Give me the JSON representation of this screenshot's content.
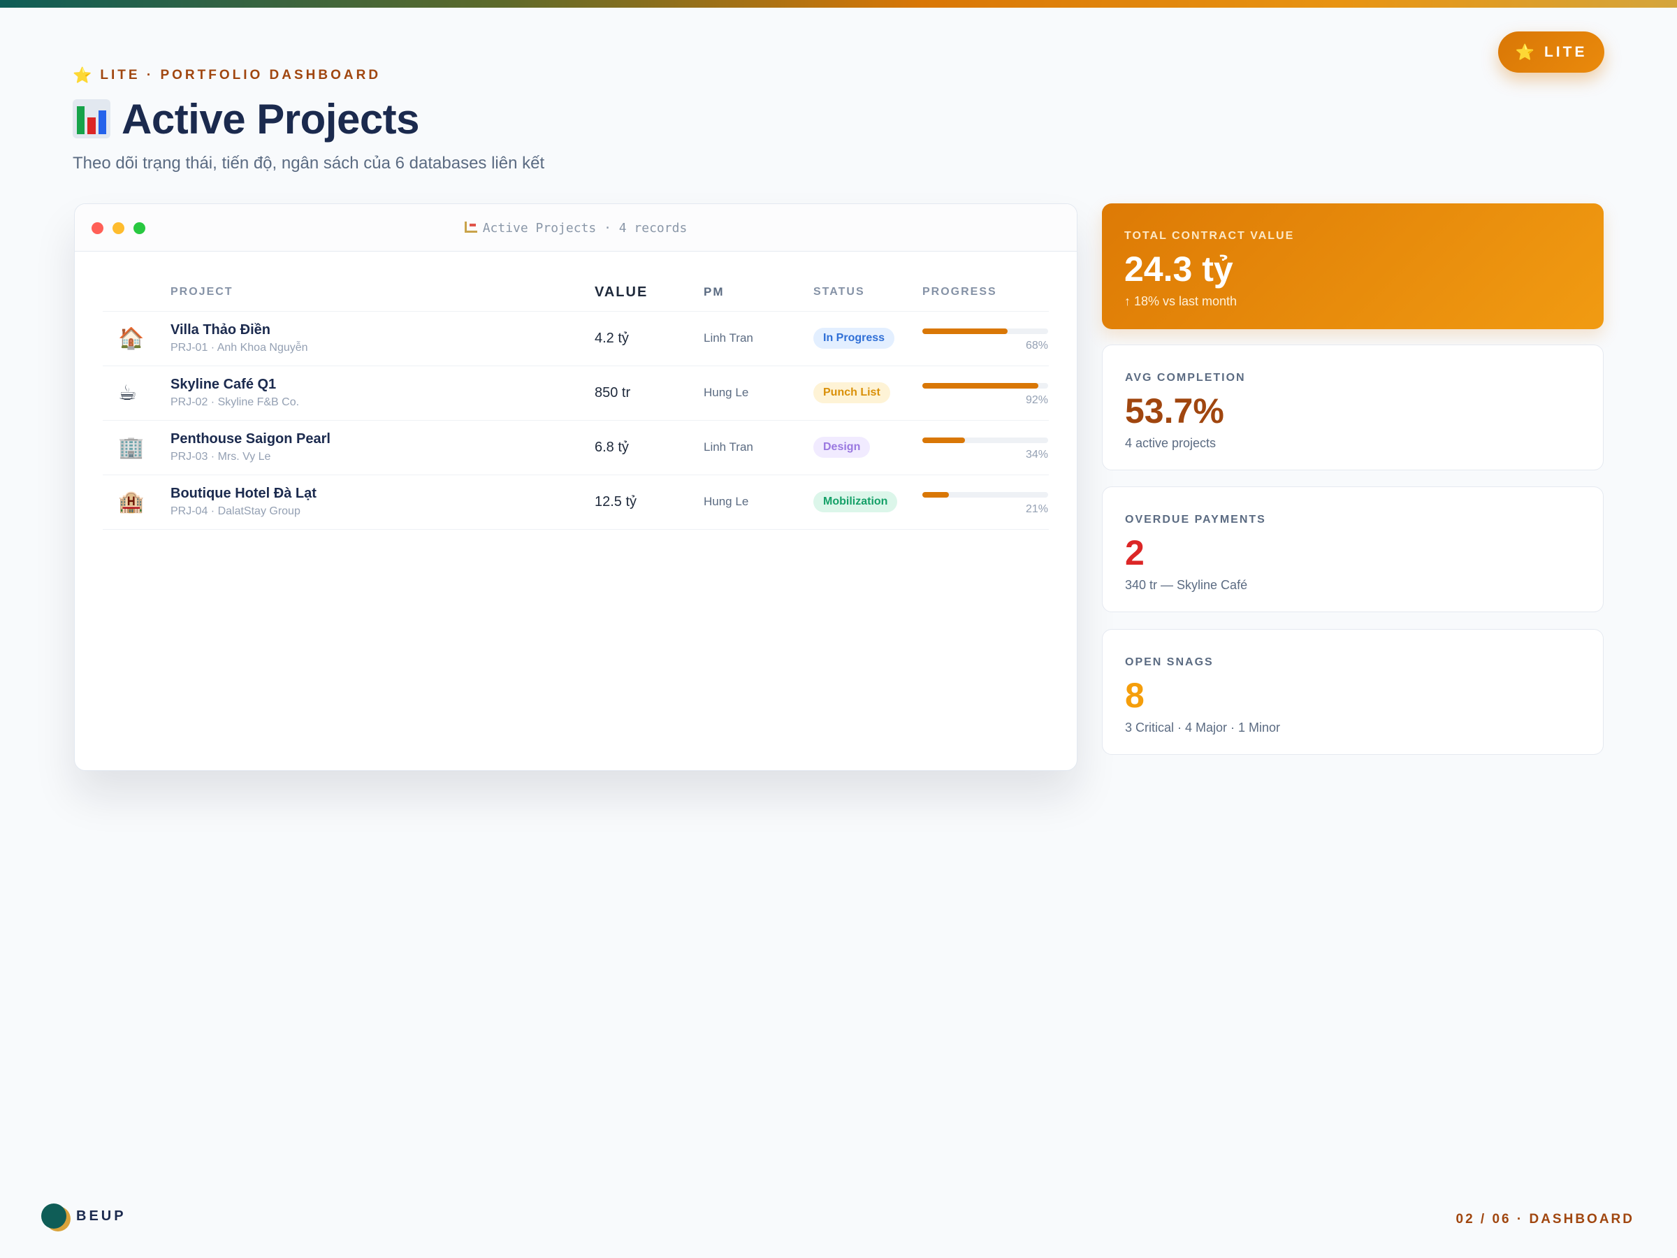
{
  "header": {
    "badge_label": "LITE",
    "eyebrow": "LITE · PORTFOLIO DASHBOARD",
    "title": "Active Projects",
    "subtitle": "Theo dõi trạng thái, tiến độ, ngân sách của 6 databases liên kết"
  },
  "window": {
    "title": "Active Projects · 4 records",
    "columns": [
      "",
      "PROJECT",
      "VALUE",
      "PM",
      "STATUS",
      "PROGRESS"
    ],
    "rows": [
      {
        "icon": "🏠",
        "icon_name": "house-icon",
        "name": "Villa Thảo Điền",
        "sub": "PRJ-01 · Anh Khoa Nguyễn",
        "value": "4.2 tỷ",
        "pm": "Linh Tran",
        "status": "In Progress",
        "status_bg": "#e3efff",
        "status_color": "#2f6fd6",
        "progress": 0.68,
        "progress_label": "68%"
      },
      {
        "icon": "☕",
        "icon_name": "coffee-icon",
        "name": "Skyline Café Q1",
        "sub": "PRJ-02 · Skyline F&B Co.",
        "value": "850 tr",
        "pm": "Hung Le",
        "status": "Punch List",
        "status_bg": "#fef3d6",
        "status_color": "#d99009",
        "progress": 0.92,
        "progress_label": "92%"
      },
      {
        "icon": "🏢",
        "icon_name": "office-building-icon",
        "name": "Penthouse Saigon Pearl",
        "sub": "PRJ-03 · Mrs. Vy Le",
        "value": "6.8 tỷ",
        "pm": "Linh Tran",
        "status": "Design",
        "status_bg": "#f1ebff",
        "status_color": "#9a78e0",
        "progress": 0.34,
        "progress_label": "34%"
      },
      {
        "icon": "🏨",
        "icon_name": "hotel-icon",
        "name": "Boutique Hotel Đà Lạt",
        "sub": "PRJ-04 · DalatStay Group",
        "value": "12.5 tỷ",
        "pm": "Hung Le",
        "status": "Mobilization",
        "status_bg": "#dcf6ea",
        "status_color": "#15a068",
        "progress": 0.21,
        "progress_label": "21%"
      }
    ]
  },
  "stats": [
    {
      "label": "TOTAL CONTRACT VALUE",
      "value": "24.3 tỷ",
      "note": "↑ 18% vs last month",
      "value_color": "#ffffff"
    },
    {
      "label": "AVG COMPLETION",
      "value": "53.7%",
      "note": "4 active projects",
      "value_color": "#a0460f"
    },
    {
      "label": "OVERDUE PAYMENTS",
      "value": "2",
      "note": "340 tr — Skyline Café",
      "value_color": "#dc2626"
    },
    {
      "label": "OPEN SNAGS",
      "value": "8",
      "note": "3 Critical · 4 Major · 1 Minor",
      "value_color": "#f59e0b"
    }
  ],
  "footer": {
    "brand": "BEUP",
    "page_indicator": "02 / 06 · DASHBOARD"
  },
  "colors": {
    "accent": "#d97706",
    "title": "#1b2a4e",
    "eyebrow": "#a0460f"
  }
}
